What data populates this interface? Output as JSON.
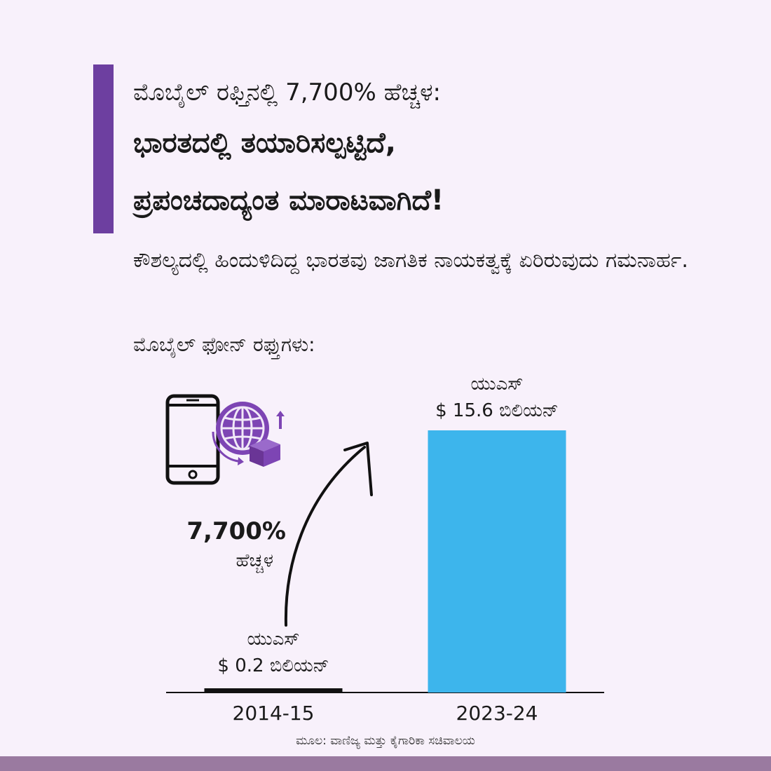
{
  "header": {
    "line1": "ಮೊಬೈಲ್ ರಫ್ತಿನಲ್ಲಿ 7,700% ಹೆಚ್ಚಳ:",
    "line2": "ಭಾರತದಲ್ಲಿ ತಯಾರಿಸಲ್ಪಟ್ಟಿದೆ,",
    "line3": "ಪ್ರಪಂಚದಾದ್ಯಂತ ಮಾರಾಟವಾಗಿದೆ!"
  },
  "subtitle": "ಕೌಶಲ್ಯದಲ್ಲಿ ಹಿಂದುಳಿದಿದ್ದ ಭಾರತವು ಜಾಗತಿಕ ನಾಯಕತ್ವಕ್ಕೆ ಏರಿರುವುದು ಗಮನಾರ್ಹ.",
  "section_label": "ಮೊಬೈಲ್ ಫೋನ್ ರಫ್ತುಗಳು:",
  "growth": {
    "percent": "7,700%",
    "word": "ಹೆಚ್ಚಳ"
  },
  "icons": {
    "phone": "smartphone-icon",
    "export": "globe-export-icon",
    "arrow": "curved-up-arrow-icon"
  },
  "colors": {
    "accent": "#6d3fa0",
    "bar_2023": "#3db5ec",
    "bar_2014": "#111111",
    "background": "#f8f1fb",
    "footer_band": "#9a7aa0"
  },
  "chart_data": {
    "type": "bar",
    "categories": [
      "2014-15",
      "2023-24"
    ],
    "values": [
      0.2,
      15.6
    ],
    "value_labels": [
      {
        "line1": "ಯುಎಸ್",
        "line2": "$ 0.2 ಬಿಲಿಯನ್"
      },
      {
        "line1": "ಯುಎಸ್",
        "line2": "$ 15.6 ಬಿಲಿಯನ್"
      }
    ],
    "ylim": [
      0,
      15.6
    ],
    "grid": false
  },
  "footer": {
    "source": "ಮೂಲ: ವಾಣಿಜ್ಯ ಮತ್ತು ಕೈಗಾರಿಕಾ ಸಚಿವಾಲಯ"
  }
}
